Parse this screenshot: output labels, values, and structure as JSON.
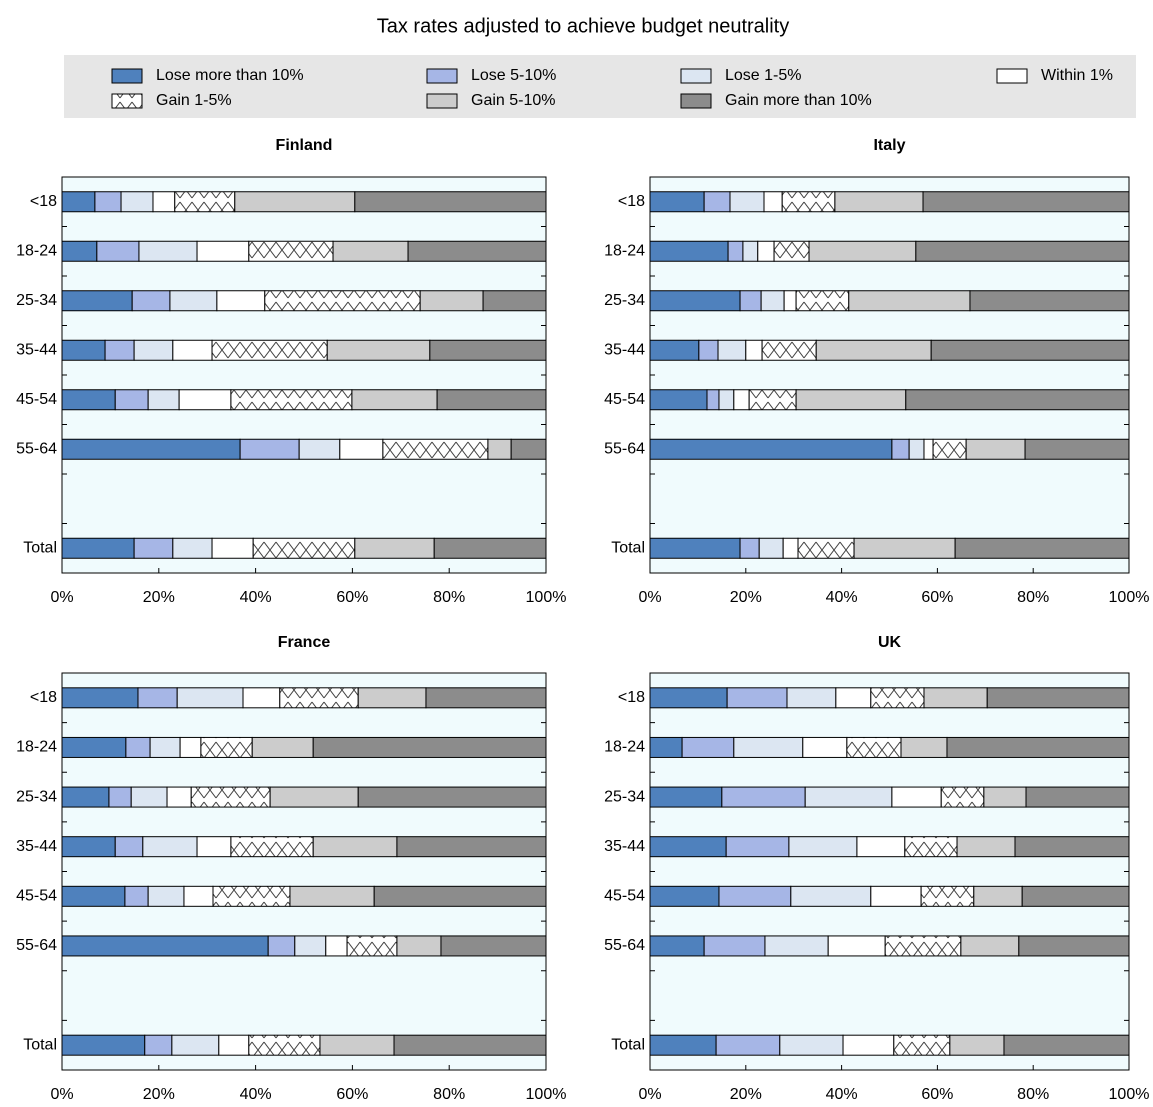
{
  "title": "Tax rates adjusted to achieve budget neutrality",
  "chart_data": [
    {
      "type": "bar",
      "orientation": "horizontal",
      "stacked": true,
      "title": "Finland",
      "categories": [
        "<18",
        "18-24",
        "25-34",
        "35-44",
        "45-54",
        "55-64",
        null,
        "Total"
      ],
      "xlim": [
        0,
        100
      ],
      "xticks": [
        {
          "value": 0,
          "label": "0%"
        },
        {
          "value": 20,
          "label": "20%"
        },
        {
          "value": 40,
          "label": "40%"
        },
        {
          "value": 60,
          "label": "60%"
        },
        {
          "value": 80,
          "label": "80%"
        },
        {
          "value": 100,
          "label": "100%"
        }
      ],
      "series": [
        {
          "name": "Lose more than 10%",
          "color": "#4f81bd",
          "values": [
            6.8,
            7.2,
            14.5,
            8.9,
            11.0,
            36.8,
            null,
            14.9
          ]
        },
        {
          "name": "Lose 5-10%",
          "color": "#a6b6e6",
          "values": [
            5.4,
            8.7,
            7.8,
            6.0,
            6.8,
            12.2,
            null,
            8.0
          ]
        },
        {
          "name": "Lose 1-5%",
          "color": "#dce6f2",
          "values": [
            6.6,
            12.0,
            9.7,
            8.0,
            6.4,
            8.4,
            null,
            8.1
          ]
        },
        {
          "name": "Within 1%",
          "color": "#ffffff",
          "values": [
            4.5,
            10.7,
            9.9,
            8.1,
            10.7,
            8.9,
            null,
            8.5
          ]
        },
        {
          "name": "Gain 1-5%",
          "color": "#ffffff",
          "pattern": "crosshatch",
          "values": [
            12.4,
            17.4,
            32.1,
            23.8,
            25.0,
            21.7,
            null,
            21.0
          ]
        },
        {
          "name": "Gain 5-10%",
          "color": "#cccccc",
          "values": [
            24.8,
            15.5,
            13.0,
            21.2,
            17.6,
            4.8,
            null,
            16.4
          ]
        },
        {
          "name": "Gain more than 10%",
          "color": "#8c8c8c",
          "values": [
            39.5,
            28.5,
            13.0,
            24.0,
            22.5,
            7.2,
            null,
            23.1
          ]
        }
      ]
    },
    {
      "type": "bar",
      "orientation": "horizontal",
      "stacked": true,
      "title": "Italy",
      "categories": [
        "<18",
        "18-24",
        "25-34",
        "35-44",
        "45-54",
        "55-64",
        null,
        "Total"
      ],
      "xlim": [
        0,
        100
      ],
      "xticks": [
        {
          "value": 0,
          "label": "0%"
        },
        {
          "value": 20,
          "label": "20%"
        },
        {
          "value": 40,
          "label": "40%"
        },
        {
          "value": 60,
          "label": "60%"
        },
        {
          "value": 80,
          "label": "80%"
        },
        {
          "value": 100,
          "label": "100%"
        }
      ],
      "series": [
        {
          "name": "Lose more than 10%",
          "color": "#4f81bd",
          "values": [
            11.3,
            16.3,
            18.8,
            10.2,
            11.9,
            50.5,
            null,
            18.8
          ]
        },
        {
          "name": "Lose 5-10%",
          "color": "#a6b6e6",
          "values": [
            5.4,
            3.1,
            4.4,
            4.0,
            2.5,
            3.6,
            null,
            4.0
          ]
        },
        {
          "name": "Lose 1-5%",
          "color": "#dce6f2",
          "values": [
            7.1,
            3.1,
            4.8,
            5.8,
            3.1,
            3.1,
            null,
            5.0
          ]
        },
        {
          "name": "Within 1%",
          "color": "#ffffff",
          "values": [
            3.8,
            3.4,
            2.5,
            3.4,
            3.2,
            1.9,
            null,
            3.1
          ]
        },
        {
          "name": "Gain 1-5%",
          "color": "#ffffff",
          "pattern": "crosshatch",
          "values": [
            11.0,
            7.3,
            11.0,
            11.3,
            9.8,
            6.9,
            null,
            11.7
          ]
        },
        {
          "name": "Gain 5-10%",
          "color": "#cccccc",
          "values": [
            18.4,
            22.3,
            25.3,
            24.0,
            22.9,
            12.3,
            null,
            21.1
          ]
        },
        {
          "name": "Gain more than 10%",
          "color": "#8c8c8c",
          "values": [
            43.0,
            44.5,
            33.2,
            41.3,
            46.6,
            21.7,
            null,
            36.3
          ]
        }
      ]
    },
    {
      "type": "bar",
      "orientation": "horizontal",
      "stacked": true,
      "title": "France",
      "categories": [
        "<18",
        "18-24",
        "25-34",
        "35-44",
        "45-54",
        "55-64",
        null,
        "Total"
      ],
      "xlim": [
        0,
        100
      ],
      "xticks": [
        {
          "value": 0,
          "label": "0%"
        },
        {
          "value": 20,
          "label": "20%"
        },
        {
          "value": 40,
          "label": "40%"
        },
        {
          "value": 60,
          "label": "60%"
        },
        {
          "value": 80,
          "label": "80%"
        },
        {
          "value": 100,
          "label": "100%"
        }
      ],
      "series": [
        {
          "name": "Lose more than 10%",
          "color": "#4f81bd",
          "values": [
            15.7,
            13.2,
            9.7,
            11.0,
            13.0,
            42.6,
            null,
            17.1
          ]
        },
        {
          "name": "Lose 5-10%",
          "color": "#a6b6e6",
          "values": [
            8.1,
            5.0,
            4.6,
            5.7,
            4.8,
            5.5,
            null,
            5.6
          ]
        },
        {
          "name": "Lose 1-5%",
          "color": "#dce6f2",
          "values": [
            13.6,
            6.2,
            7.4,
            11.2,
            7.4,
            6.4,
            null,
            9.7
          ]
        },
        {
          "name": "Within 1%",
          "color": "#ffffff",
          "values": [
            7.6,
            4.3,
            5.0,
            7.0,
            6.0,
            4.4,
            null,
            6.2
          ]
        },
        {
          "name": "Gain 1-5%",
          "color": "#ffffff",
          "pattern": "crosshatch",
          "values": [
            16.2,
            10.6,
            16.3,
            17.0,
            15.9,
            10.3,
            null,
            14.7
          ]
        },
        {
          "name": "Gain 5-10%",
          "color": "#cccccc",
          "values": [
            14.0,
            12.6,
            18.2,
            17.3,
            17.4,
            9.1,
            null,
            15.3
          ]
        },
        {
          "name": "Gain more than 10%",
          "color": "#8c8c8c",
          "values": [
            24.8,
            48.1,
            38.8,
            30.8,
            35.5,
            21.7,
            null,
            31.4
          ]
        }
      ]
    },
    {
      "type": "bar",
      "orientation": "horizontal",
      "stacked": true,
      "title": "UK",
      "categories": [
        "<18",
        "18-24",
        "25-34",
        "35-44",
        "45-54",
        "55-64",
        null,
        "Total"
      ],
      "xlim": [
        0,
        100
      ],
      "xticks": [
        {
          "value": 0,
          "label": "0%"
        },
        {
          "value": 20,
          "label": "20%"
        },
        {
          "value": 40,
          "label": "40%"
        },
        {
          "value": 60,
          "label": "60%"
        },
        {
          "value": 80,
          "label": "80%"
        },
        {
          "value": 100,
          "label": "100%"
        }
      ],
      "series": [
        {
          "name": "Lose more than 10%",
          "color": "#4f81bd",
          "values": [
            16.1,
            6.7,
            15.0,
            15.9,
            14.4,
            11.3,
            null,
            13.8
          ]
        },
        {
          "name": "Lose 5-10%",
          "color": "#a6b6e6",
          "values": [
            12.5,
            10.8,
            17.4,
            13.1,
            15.0,
            12.7,
            null,
            13.3
          ]
        },
        {
          "name": "Lose 1-5%",
          "color": "#dce6f2",
          "values": [
            10.2,
            14.4,
            18.1,
            14.2,
            16.7,
            13.2,
            null,
            13.2
          ]
        },
        {
          "name": "Within 1%",
          "color": "#ffffff",
          "values": [
            7.3,
            9.2,
            10.3,
            10.0,
            10.5,
            11.9,
            null,
            10.6
          ]
        },
        {
          "name": "Gain 1-5%",
          "color": "#ffffff",
          "pattern": "crosshatch",
          "values": [
            11.1,
            11.3,
            8.9,
            10.9,
            11.0,
            15.8,
            null,
            11.7
          ]
        },
        {
          "name": "Gain 5-10%",
          "color": "#cccccc",
          "values": [
            13.2,
            9.6,
            8.8,
            12.1,
            10.1,
            12.1,
            null,
            11.3
          ]
        },
        {
          "name": "Gain more than 10%",
          "color": "#8c8c8c",
          "values": [
            29.6,
            38.0,
            21.5,
            23.8,
            22.3,
            23.0,
            null,
            26.1
          ]
        }
      ]
    }
  ]
}
